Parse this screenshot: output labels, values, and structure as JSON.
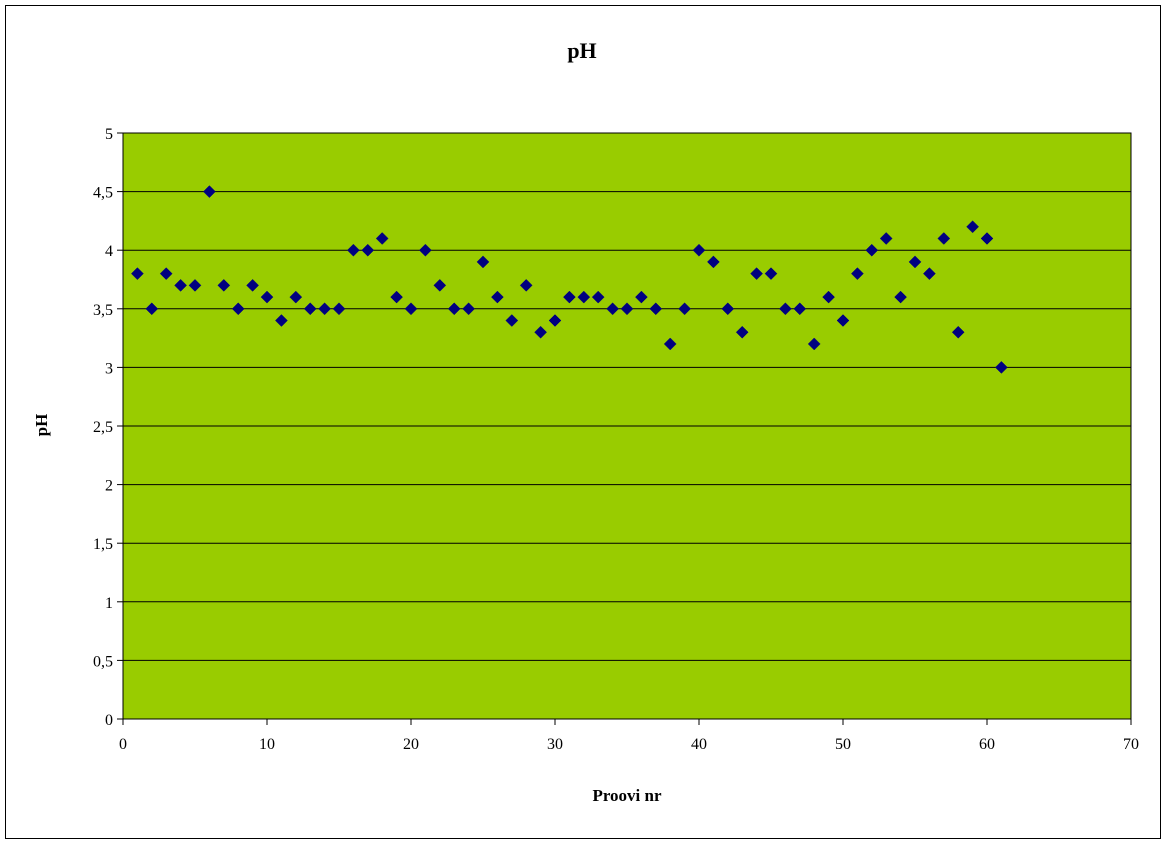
{
  "chart_data": {
    "type": "scatter",
    "title": "pH",
    "xlabel": "Proovi nr",
    "ylabel": "pH",
    "xlim": [
      0,
      70
    ],
    "ylim": [
      0,
      5
    ],
    "x_ticks": [
      "0",
      "10",
      "20",
      "30",
      "40",
      "50",
      "60",
      "70"
    ],
    "x_tick_values": [
      0,
      10,
      20,
      30,
      40,
      50,
      60,
      70
    ],
    "y_ticks": [
      "0",
      "0,5",
      "1",
      "1,5",
      "2",
      "2,5",
      "3",
      "3,5",
      "4",
      "4,5",
      "5"
    ],
    "y_tick_values": [
      0,
      0.5,
      1,
      1.5,
      2,
      2.5,
      3,
      3.5,
      4,
      4.5,
      5
    ],
    "grid": "horizontal",
    "legend": "none",
    "marker": "diamond",
    "colors": {
      "plot_background": "#99CC00",
      "marker": "#000080",
      "gridline": "#000000"
    },
    "series": [
      {
        "x": [
          1,
          2,
          3,
          4,
          5,
          6,
          7,
          8,
          9,
          10,
          11,
          12,
          13,
          14,
          15,
          16,
          17,
          18,
          19,
          20,
          21,
          22,
          23,
          24,
          25,
          26,
          27,
          28,
          29,
          30,
          31,
          32,
          33,
          34,
          35,
          36,
          37,
          38,
          39,
          40,
          41,
          42,
          43,
          44,
          45,
          46,
          47,
          48,
          49,
          50,
          51,
          52,
          53,
          54,
          55,
          56,
          57,
          58,
          59,
          60,
          61
        ],
        "y": [
          3.8,
          3.5,
          3.8,
          3.7,
          3.7,
          4.5,
          3.7,
          3.5,
          3.7,
          3.6,
          3.4,
          3.6,
          3.5,
          3.5,
          3.5,
          4.0,
          4.0,
          4.1,
          3.6,
          3.5,
          4.0,
          3.7,
          3.5,
          3.5,
          3.9,
          3.6,
          3.4,
          3.7,
          3.3,
          3.4,
          3.6,
          3.6,
          3.6,
          3.5,
          3.5,
          3.6,
          3.5,
          3.2,
          3.5,
          4.0,
          3.9,
          3.5,
          3.3,
          3.8,
          3.8,
          3.5,
          3.5,
          3.2,
          3.6,
          3.4,
          3.8,
          4.0,
          4.1,
          3.6,
          3.9,
          3.8,
          4.1,
          3.3,
          4.2,
          4.1,
          3.0
        ]
      }
    ]
  }
}
